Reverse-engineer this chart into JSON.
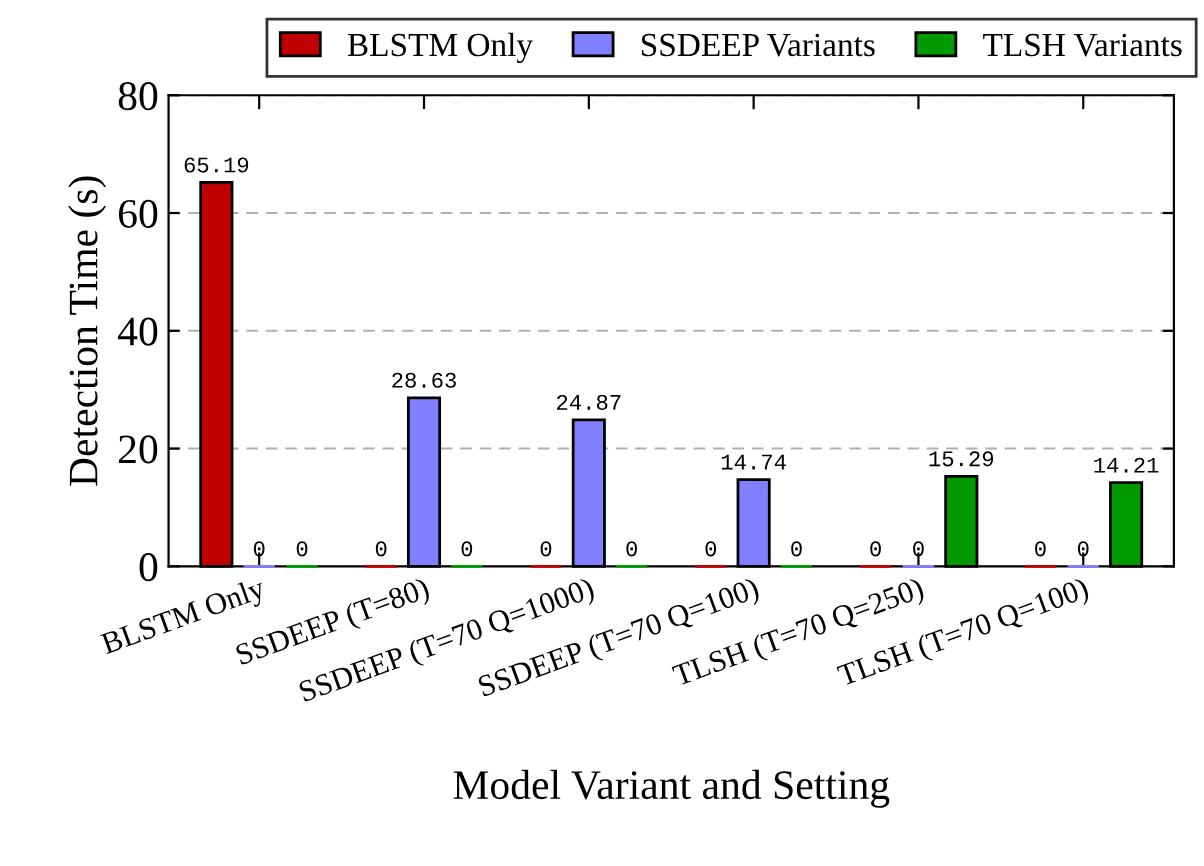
{
  "chart_data": {
    "type": "bar",
    "xlabel": "Model Variant and Setting",
    "ylabel": "Detection Time (s)",
    "categories": [
      "BLSTM Only",
      "SSDEEP (T=80)",
      "SSDEEP (T=70 Q=1000)",
      "SSDEEP (T=70 Q=100)",
      "TLSH (T=70 Q=250)",
      "TLSH (T=70 Q=100)"
    ],
    "series": [
      {
        "name": "BLSTM Only",
        "color": "#c00000",
        "values": [
          65.19,
          0,
          0,
          0,
          0,
          0
        ]
      },
      {
        "name": "SSDEEP Variants",
        "color": "#8080ff",
        "values": [
          0,
          28.63,
          24.87,
          14.74,
          0,
          0
        ]
      },
      {
        "name": "TLSH Variants",
        "color": "#009a00",
        "values": [
          0,
          0,
          0,
          0,
          15.29,
          14.21
        ]
      }
    ],
    "ylim": [
      0,
      80
    ],
    "yticks": [
      0,
      20,
      40,
      60,
      80
    ],
    "grid": "y",
    "legend": "top",
    "data_labels": true
  }
}
